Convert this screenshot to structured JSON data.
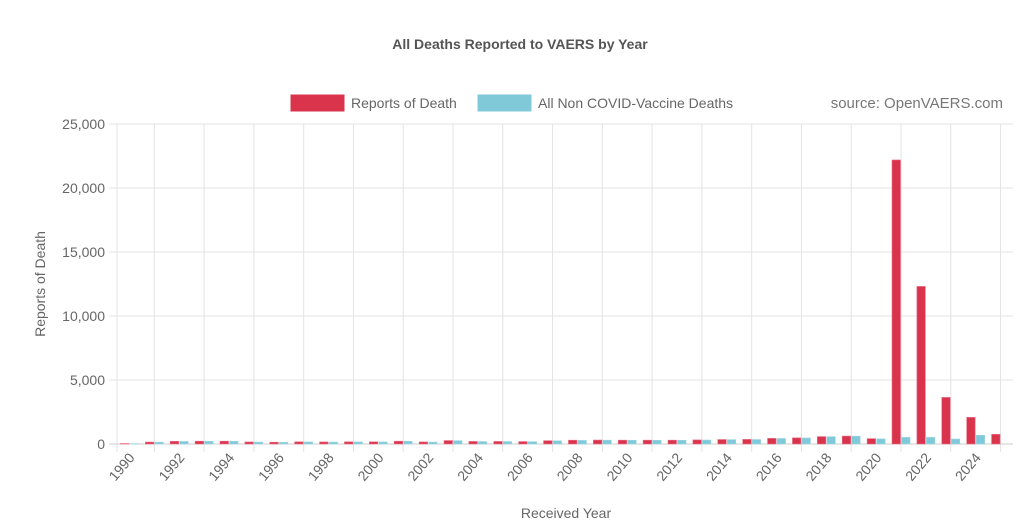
{
  "chart_data": {
    "type": "bar",
    "title": "All Deaths Reported to VAERS by Year",
    "xlabel": "Received Year",
    "ylabel": "Reports of Death",
    "source": "source: OpenVAERS.com",
    "ylim": [
      0,
      25000
    ],
    "yticks": [
      0,
      5000,
      10000,
      15000,
      20000,
      25000
    ],
    "ytick_labels": [
      "0",
      "5,000",
      "10,000",
      "15,000",
      "20,000",
      "25,000"
    ],
    "grid": true,
    "legend_position": "top",
    "categories": [
      "1990",
      "1991",
      "1992",
      "1993",
      "1994",
      "1995",
      "1996",
      "1997",
      "1998",
      "1999",
      "2000",
      "2001",
      "2002",
      "2003",
      "2004",
      "2005",
      "2006",
      "2007",
      "2008",
      "2009",
      "2010",
      "2011",
      "2012",
      "2013",
      "2014",
      "2015",
      "2016",
      "2017",
      "2018",
      "2019",
      "2020",
      "2021",
      "2022",
      "2023",
      "2024",
      "2025"
    ],
    "series": [
      {
        "name": "Reports of Death",
        "color": "#d9344b",
        "values": [
          40,
          150,
          210,
          220,
          220,
          160,
          140,
          170,
          160,
          170,
          170,
          220,
          160,
          270,
          200,
          200,
          190,
          260,
          300,
          310,
          300,
          300,
          300,
          320,
          350,
          360,
          440,
          480,
          580,
          620,
          420,
          22190,
          12310,
          3640,
          2080,
          755
        ]
      },
      {
        "name": "All Non COVID-Vaccine Deaths",
        "color": "#80c9d8",
        "values": [
          30,
          140,
          200,
          210,
          210,
          150,
          130,
          160,
          150,
          160,
          160,
          210,
          150,
          260,
          190,
          190,
          180,
          250,
          280,
          300,
          290,
          290,
          290,
          310,
          340,
          350,
          430,
          470,
          570,
          610,
          400,
          520,
          520,
          390,
          680,
          null
        ]
      }
    ]
  }
}
